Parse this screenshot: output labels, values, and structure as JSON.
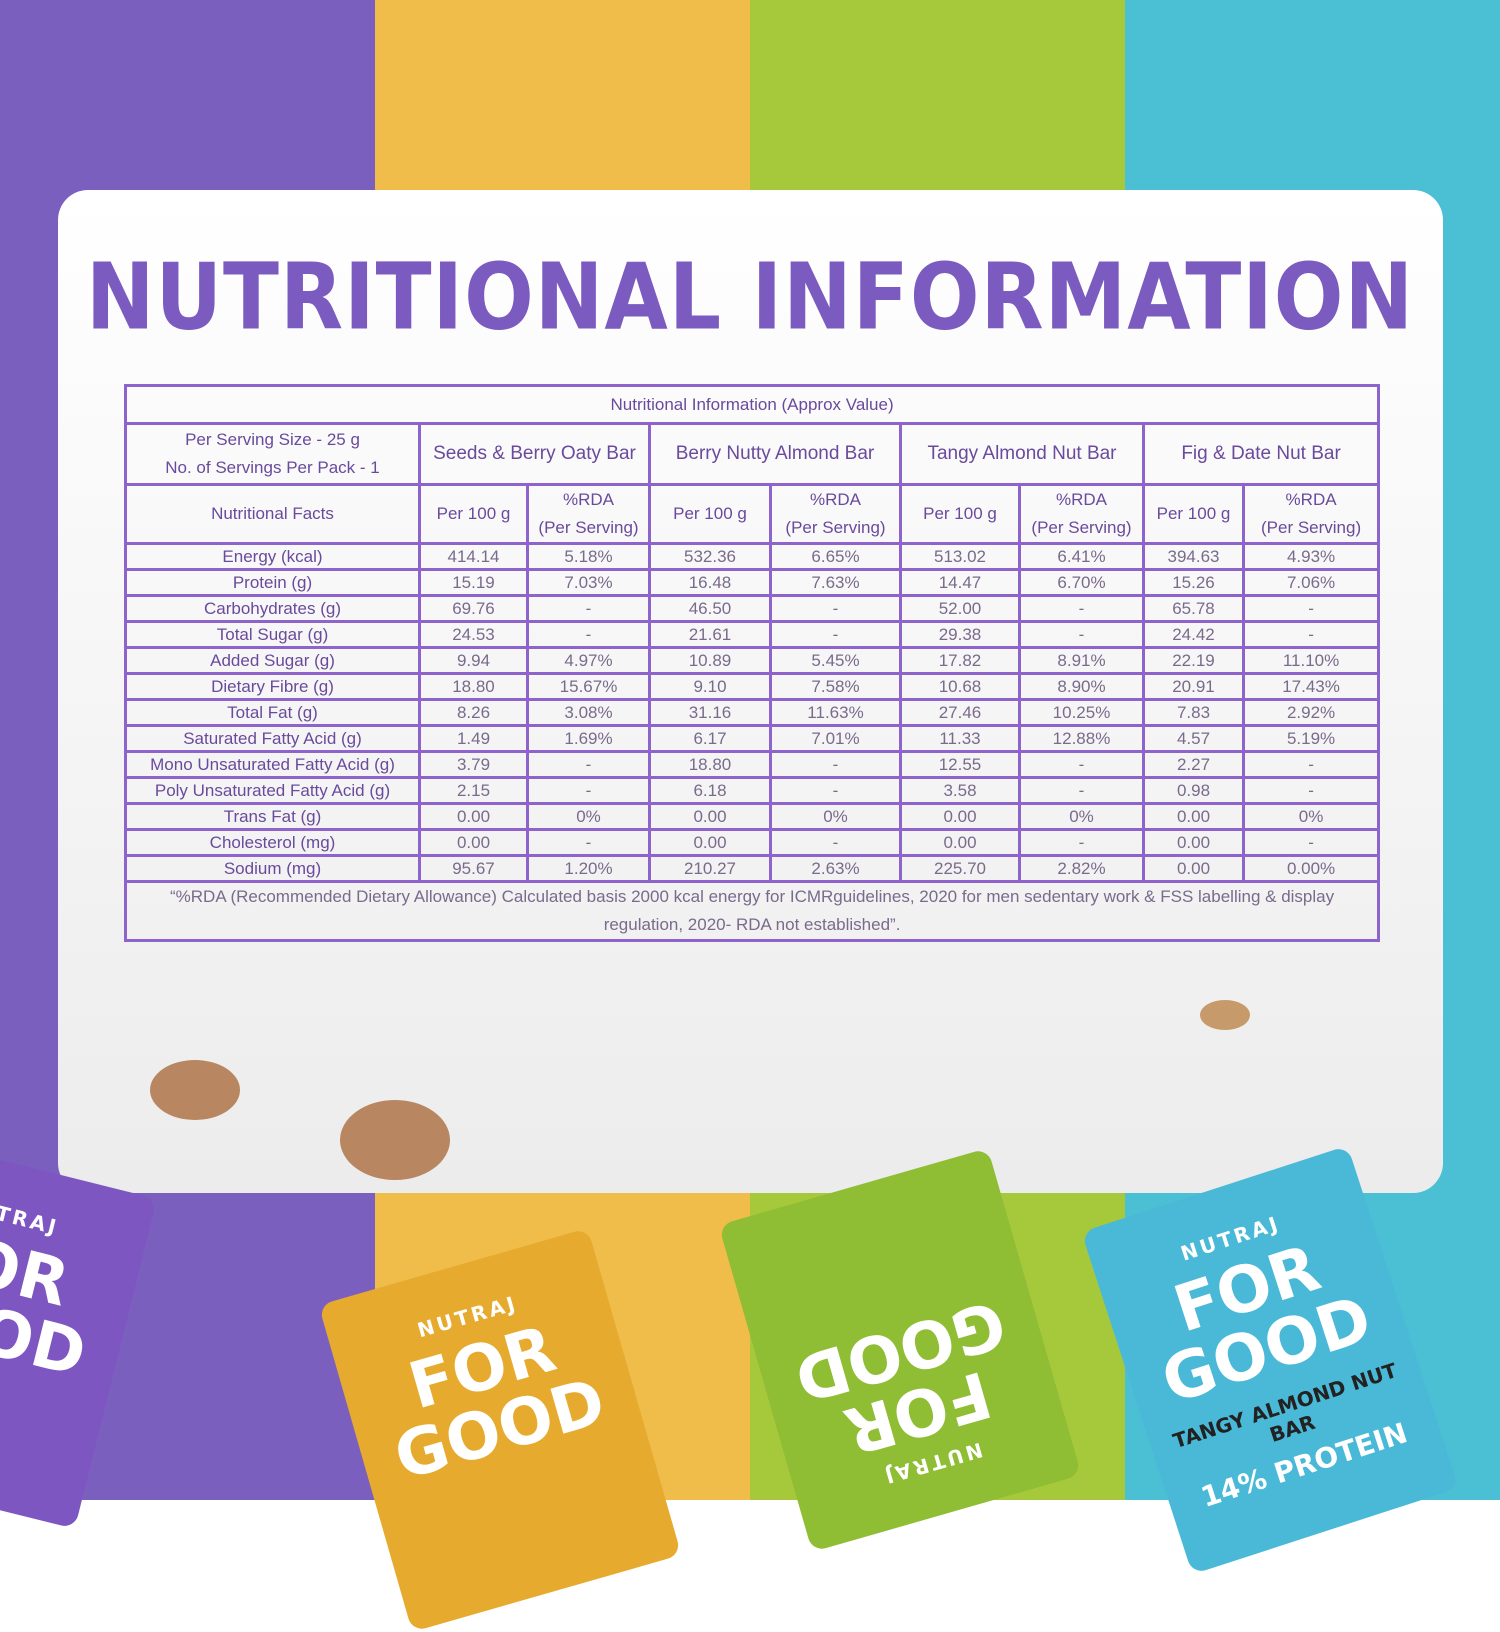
{
  "title": "NUTRITIONAL INFORMATION",
  "table": {
    "caption": "Nutritional Information (Approx Value)",
    "serving": [
      "Per Serving Size - 25 g",
      "No. of Servings Per Pack - 1"
    ],
    "products": [
      "Seeds & Berry Oaty Bar",
      "Berry Nutty Almond Bar",
      "Tangy Almond Nut Bar",
      "Fig & Date Nut Bar"
    ],
    "facts_label": "Nutritional Facts",
    "per_100g": "Per 100 g",
    "rda": [
      "%RDA",
      "(Per Serving)"
    ],
    "rows": [
      [
        "Energy (kcal)",
        "414.14",
        "5.18%",
        "532.36",
        "6.65%",
        "513.02",
        "6.41%",
        "394.63",
        "4.93%"
      ],
      [
        "Protein (g)",
        "15.19",
        "7.03%",
        "16.48",
        "7.63%",
        "14.47",
        "6.70%",
        "15.26",
        "7.06%"
      ],
      [
        "Carbohydrates (g)",
        "69.76",
        "-",
        "46.50",
        "-",
        "52.00",
        "-",
        "65.78",
        "-"
      ],
      [
        "Total Sugar (g)",
        "24.53",
        "-",
        "21.61",
        "-",
        "29.38",
        "-",
        "24.42",
        "-"
      ],
      [
        "Added Sugar (g)",
        "9.94",
        "4.97%",
        "10.89",
        "5.45%",
        "17.82",
        "8.91%",
        "22.19",
        "11.10%"
      ],
      [
        "Dietary Fibre (g)",
        "18.80",
        "15.67%",
        "9.10",
        "7.58%",
        "10.68",
        "8.90%",
        "20.91",
        "17.43%"
      ],
      [
        "Total Fat (g)",
        "8.26",
        "3.08%",
        "31.16",
        "11.63%",
        "27.46",
        "10.25%",
        "7.83",
        "2.92%"
      ],
      [
        "Saturated Fatty Acid (g)",
        "1.49",
        "1.69%",
        "6.17",
        "7.01%",
        "11.33",
        "12.88%",
        "4.57",
        "5.19%"
      ],
      [
        "Mono Unsaturated Fatty Acid (g)",
        "3.79",
        "-",
        "18.80",
        "-",
        "12.55",
        "-",
        "2.27",
        "-"
      ],
      [
        "Poly Unsaturated Fatty Acid (g)",
        "2.15",
        "-",
        "6.18",
        "-",
        "3.58",
        "-",
        "0.98",
        "-"
      ],
      [
        "Trans Fat (g)",
        "0.00",
        "0%",
        "0.00",
        "0%",
        "0.00",
        "0%",
        "0.00",
        "0%"
      ],
      [
        "Cholesterol (mg)",
        "0.00",
        "-",
        "0.00",
        "-",
        "0.00",
        "-",
        "0.00",
        "-"
      ],
      [
        "Sodium (mg)",
        "95.67",
        "1.20%",
        "210.27",
        "2.63%",
        "225.70",
        "2.82%",
        "0.00",
        "0.00%"
      ]
    ],
    "footnote": "“%RDA (Recommended Dietary Allowance) Calculated basis 2000 kcal energy for ICMRguidelines, 2020 for men sedentary work & FSS labelling & display regulation, 2020- RDA not established”."
  },
  "packs": {
    "brand": "NUTRAJ",
    "name": "FOR GOOD",
    "variant": "TANGY ALMOND NUT BAR",
    "claim": "14% PROTEIN"
  }
}
